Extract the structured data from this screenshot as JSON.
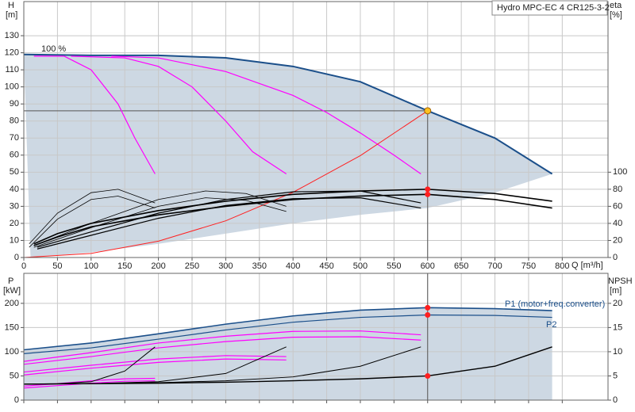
{
  "chart_data": [
    {
      "type": "line",
      "title": "Hydro MPC-EC 4 CR125-3-2",
      "annotation": "100 %",
      "ylabel": "H",
      "yunit": "[m]",
      "y2label": "eta",
      "y2unit": "[%]",
      "xlabel": "Q [m³/h]",
      "xlim": [
        0,
        868
      ],
      "xticks": [
        0,
        50,
        100,
        150,
        200,
        250,
        300,
        350,
        400,
        450,
        500,
        550,
        600,
        650,
        700,
        750,
        800
      ],
      "xtick_labels": true,
      "ylim": [
        0,
        150
      ],
      "yticks": [
        0,
        10,
        20,
        30,
        40,
        50,
        60,
        70,
        80,
        90,
        100,
        110,
        120,
        130
      ],
      "y2lim": [
        0,
        300
      ],
      "y2ticks": [
        0,
        20,
        40,
        60,
        80,
        100
      ],
      "grid": true,
      "shade": {
        "color": "#cdd8e3",
        "edge_series": 0,
        "x": [
          785,
          700,
          600,
          500,
          400,
          300,
          200,
          100,
          10,
          5,
          0
        ],
        "values": [
          49,
          38,
          29,
          25,
          20,
          14,
          8,
          3,
          0,
          60,
          119
        ]
      },
      "duty_point": {
        "x": 600,
        "y": 86,
        "color": "#ffc020"
      },
      "markers": [
        {
          "x": 600,
          "y": 80,
          "axis": "y2",
          "color": "#ff2020"
        },
        {
          "x": 600,
          "y": 74,
          "axis": "y2",
          "color": "#ff2020"
        }
      ],
      "series": [
        {
          "color": "#1b4f8a",
          "width": 2,
          "x": [
            0,
            100,
            200,
            300,
            400,
            500,
            600,
            700,
            785
          ],
          "values": [
            119,
            118.5,
            118.5,
            117,
            112,
            103,
            86,
            70,
            49
          ]
        },
        {
          "color": "#ff00ff",
          "width": 1.2,
          "x": [
            15,
            60,
            100,
            140,
            165,
            195
          ],
          "values": [
            118,
            118,
            110,
            90,
            70,
            49
          ]
        },
        {
          "color": "#ff00ff",
          "width": 1.2,
          "x": [
            70,
            150,
            200,
            250,
            300,
            340,
            390
          ],
          "values": [
            118,
            117,
            112,
            100,
            80,
            62,
            49
          ]
        },
        {
          "color": "#ff00ff",
          "width": 1.2,
          "x": [
            130,
            200,
            300,
            400,
            450,
            500,
            550,
            590
          ],
          "values": [
            118,
            117,
            109,
            95,
            85,
            73,
            60,
            49
          ]
        },
        {
          "color": "#ff2020",
          "width": 1,
          "x": [
            0,
            100,
            200,
            300,
            400,
            500,
            600
          ],
          "values": [
            0,
            2.4,
            9.6,
            21.5,
            38.2,
            59.7,
            86
          ]
        },
        {
          "color": "#000000",
          "width": 0.8,
          "axis": "y2",
          "x": [
            8,
            50,
            100,
            140,
            195
          ],
          "values": [
            16,
            52,
            76,
            80,
            64
          ]
        },
        {
          "color": "#000000",
          "width": 0.8,
          "axis": "y2",
          "x": [
            8,
            50,
            100,
            140,
            195
          ],
          "values": [
            12,
            45,
            68,
            72,
            58
          ]
        },
        {
          "color": "#000000",
          "width": 0.8,
          "axis": "y2",
          "x": [
            15,
            100,
            200,
            270,
            330,
            390
          ],
          "values": [
            14,
            40,
            68,
            78,
            75,
            60
          ]
        },
        {
          "color": "#000000",
          "width": 0.8,
          "axis": "y2",
          "x": [
            15,
            100,
            200,
            270,
            330,
            390
          ],
          "values": [
            12,
            35,
            60,
            70,
            67,
            54
          ]
        },
        {
          "color": "#000000",
          "width": 1.2,
          "axis": "y2",
          "x": [
            20,
            100,
            200,
            300,
            400,
            500,
            590
          ],
          "values": [
            12,
            30,
            52,
            68,
            77,
            78,
            64
          ]
        },
        {
          "color": "#000000",
          "width": 1.2,
          "axis": "y2",
          "x": [
            20,
            100,
            200,
            300,
            400,
            500,
            590
          ],
          "values": [
            10,
            26,
            46,
            61,
            69,
            70,
            58
          ]
        },
        {
          "color": "#000000",
          "width": 1.6,
          "axis": "y2",
          "x": [
            15,
            50,
            100,
            200,
            300,
            400,
            500,
            600,
            700,
            785
          ],
          "values": [
            16,
            28,
            40,
            55,
            66,
            74,
            78,
            80,
            75,
            66
          ]
        },
        {
          "color": "#000000",
          "width": 1.6,
          "axis": "y2",
          "x": [
            15,
            50,
            100,
            200,
            300,
            400,
            500,
            600,
            700,
            785
          ],
          "values": [
            14,
            24,
            36,
            50,
            60,
            68,
            72,
            74,
            68,
            58
          ]
        }
      ]
    },
    {
      "type": "line",
      "ylabel": "P",
      "yunit": "[kW]",
      "y2label": "NPSH",
      "y2unit": "[m]",
      "xlim": [
        0,
        868
      ],
      "xticks": [
        0,
        50,
        100,
        150,
        200,
        250,
        300,
        350,
        400,
        450,
        500,
        550,
        600,
        650,
        700,
        750,
        800
      ],
      "xtick_labels": false,
      "ylim": [
        0,
        262
      ],
      "yticks": [
        0,
        50,
        100,
        150,
        200
      ],
      "y2lim": [
        0,
        26.2
      ],
      "y2ticks": [
        0,
        5,
        10,
        15,
        20
      ],
      "grid": true,
      "shade": {
        "color": "#cdd8e3",
        "edge_series": 0
      },
      "duty_point": {
        "x": 600
      },
      "markers": [
        {
          "x": 600,
          "y": 191,
          "color": "#ff2020"
        },
        {
          "x": 600,
          "y": 176,
          "color": "#ff2020"
        },
        {
          "x": 600,
          "y": 5,
          "axis": "y2",
          "color": "#ff2020"
        }
      ],
      "series": [
        {
          "name": "P1 (motor+freq.converter)",
          "color": "#1b4f8a",
          "width": 1.6,
          "x": [
            0,
            100,
            200,
            300,
            400,
            500,
            600,
            700,
            785
          ],
          "values": [
            104,
            118,
            137,
            157,
            174,
            186,
            191,
            189,
            185
          ]
        },
        {
          "name": "P2",
          "color": "#1b4f8a",
          "width": 1.2,
          "x": [
            0,
            100,
            200,
            300,
            400,
            500,
            600,
            700,
            785
          ],
          "values": [
            96,
            108,
            126,
            145,
            161,
            171,
            176,
            175,
            171
          ]
        },
        {
          "color": "#ff00ff",
          "width": 1.2,
          "x": [
            0,
            100,
            200,
            300,
            400,
            500,
            590
          ],
          "values": [
            80,
            98,
            118,
            132,
            142,
            143,
            135
          ]
        },
        {
          "color": "#ff00ff",
          "width": 1.2,
          "x": [
            0,
            100,
            200,
            300,
            400,
            500,
            590
          ],
          "values": [
            74,
            90,
            108,
            121,
            130,
            131,
            124
          ]
        },
        {
          "color": "#ff00ff",
          "width": 1.2,
          "x": [
            0,
            100,
            200,
            300,
            390
          ],
          "values": [
            58,
            72,
            85,
            92,
            90
          ]
        },
        {
          "color": "#ff00ff",
          "width": 1.2,
          "x": [
            0,
            100,
            200,
            300,
            390
          ],
          "values": [
            52,
            66,
            78,
            85,
            83
          ]
        },
        {
          "color": "#ff00ff",
          "width": 1.2,
          "x": [
            0,
            50,
            100,
            150,
            195
          ],
          "values": [
            29,
            34,
            40,
            44,
            45
          ]
        },
        {
          "color": "#ff00ff",
          "width": 1.2,
          "x": [
            0,
            50,
            100,
            150,
            195
          ],
          "values": [
            25,
            30,
            35,
            39,
            40
          ]
        },
        {
          "color": "#000000",
          "width": 1,
          "axis": "y2",
          "x": [
            0,
            50,
            100,
            150,
            195
          ],
          "values": [
            3.3,
            3.4,
            3.8,
            6,
            11
          ]
        },
        {
          "color": "#000000",
          "width": 1,
          "axis": "y2",
          "x": [
            0,
            100,
            200,
            300,
            390
          ],
          "values": [
            3.3,
            3.4,
            3.8,
            5.5,
            11
          ]
        },
        {
          "color": "#000000",
          "width": 1,
          "axis": "y2",
          "x": [
            0,
            100,
            200,
            300,
            400,
            500,
            590
          ],
          "values": [
            3.3,
            3.4,
            3.6,
            4,
            4.8,
            7,
            11
          ]
        },
        {
          "color": "#000000",
          "width": 1.4,
          "axis": "y2",
          "x": [
            0,
            100,
            200,
            300,
            400,
            500,
            600,
            700,
            785
          ],
          "values": [
            3.3,
            3.4,
            3.5,
            3.7,
            4,
            4.4,
            5,
            7,
            11
          ]
        }
      ]
    }
  ]
}
